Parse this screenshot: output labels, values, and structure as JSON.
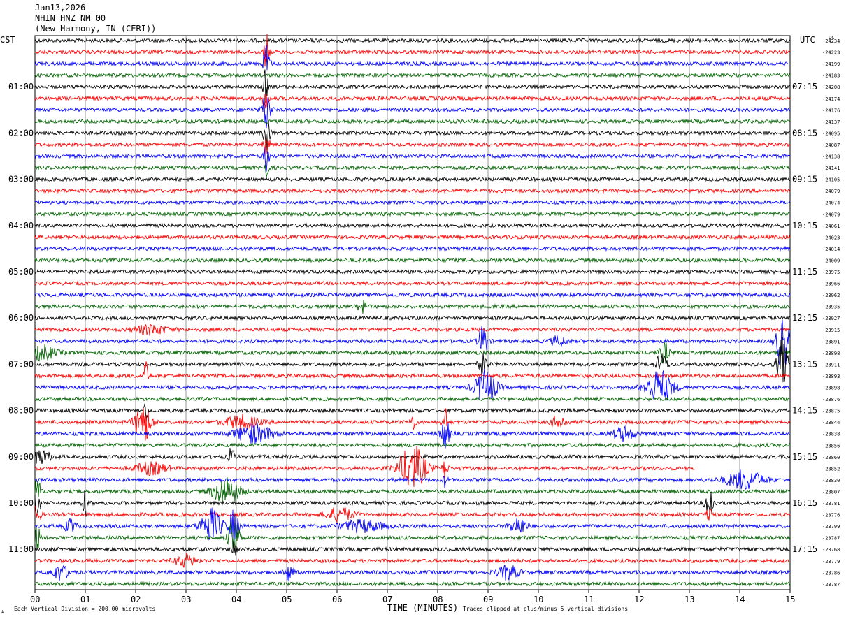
{
  "header": {
    "date": "Jan13,2026",
    "station": "NHIN HNZ NM 00",
    "location": "(New Harmony, IN (CERI))"
  },
  "chart_data": {
    "type": "line",
    "left_axis_label": "CST",
    "right_axis_label": "UTC",
    "dc_label": "DC",
    "xlabel": "TIME (MINUTES)",
    "xlim": [
      0,
      15
    ],
    "x_ticks": [
      "00",
      "01",
      "02",
      "03",
      "04",
      "05",
      "06",
      "07",
      "08",
      "09",
      "10",
      "11",
      "12",
      "13",
      "14",
      "15"
    ],
    "rows_per_hour": 4,
    "trace_count": 48,
    "trace_colors": [
      "#000000",
      "#ff0000",
      "#0000ff",
      "#006400"
    ],
    "left_hour_labels": [
      "01:00",
      "02:00",
      "03:00",
      "04:00",
      "05:00",
      "06:00",
      "07:00",
      "08:00",
      "09:00",
      "10:00",
      "11:00"
    ],
    "right_hour_labels": [
      "07:15",
      "08:15",
      "09:15",
      "10:15",
      "11:15",
      "12:15",
      "13:15",
      "14:15",
      "15:15",
      "16:15",
      "17:15"
    ],
    "dc_offsets": [
      "-24234",
      "-24223",
      "-24199",
      "-24183",
      "-24208",
      "-24174",
      "-24176",
      "-24137",
      "-24095",
      "-24087",
      "-24138",
      "-24141",
      "-24105",
      "-24079",
      "-24074",
      "-24079",
      "-24061",
      "-24023",
      "-24014",
      "-24009",
      "-23975",
      "-23966",
      "-23962",
      "-23935",
      "-23927",
      "-23915",
      "-23891",
      "-23898",
      "-23911",
      "-23893",
      "-23898",
      "-23876",
      "-23875",
      "-23844",
      "-23838",
      "-23856",
      "-23860",
      "-23852",
      "-23830",
      "-23807",
      "-23781",
      "-23776",
      "-23799",
      "-23787",
      "-23768",
      "-23779",
      "-23786",
      "-23787"
    ],
    "events": [
      {
        "row": 1,
        "minute": 4.6,
        "amp": 1.6,
        "width": 0.05
      },
      {
        "row": 2,
        "minute": 4.6,
        "amp": 1.8,
        "width": 0.06
      },
      {
        "row": 4,
        "minute": 4.58,
        "amp": 1.4,
        "width": 0.05
      },
      {
        "row": 5,
        "minute": 4.58,
        "amp": 1.2,
        "width": 0.05
      },
      {
        "row": 6,
        "minute": 4.6,
        "amp": 1.8,
        "width": 0.08
      },
      {
        "row": 8,
        "minute": 4.6,
        "amp": 1.5,
        "width": 0.06
      },
      {
        "row": 9,
        "minute": 4.6,
        "amp": 1.2,
        "width": 0.05
      },
      {
        "row": 10,
        "minute": 4.6,
        "amp": 1.4,
        "width": 0.05
      },
      {
        "row": 11,
        "minute": 4.6,
        "amp": 0.8,
        "width": 0.04
      },
      {
        "row": 23,
        "minute": 6.5,
        "amp": 0.5,
        "width": 0.08
      },
      {
        "row": 25,
        "minute": 2.3,
        "amp": 0.4,
        "width": 0.3
      },
      {
        "row": 26,
        "minute": 8.9,
        "amp": 1.5,
        "width": 0.08
      },
      {
        "row": 26,
        "minute": 10.4,
        "amp": 0.4,
        "width": 0.15
      },
      {
        "row": 26,
        "minute": 14.85,
        "amp": 2.5,
        "width": 0.12
      },
      {
        "row": 27,
        "minute": 0.15,
        "amp": 0.6,
        "width": 0.25
      },
      {
        "row": 27,
        "minute": 12.5,
        "amp": 1.0,
        "width": 0.08
      },
      {
        "row": 28,
        "minute": 14.85,
        "amp": 2.2,
        "width": 0.1
      },
      {
        "row": 28,
        "minute": 8.9,
        "amp": 1.0,
        "width": 0.08
      },
      {
        "row": 28,
        "minute": 12.45,
        "amp": 1.0,
        "width": 0.1
      },
      {
        "row": 29,
        "minute": 2.2,
        "amp": 1.2,
        "width": 0.05
      },
      {
        "row": 30,
        "minute": 8.95,
        "amp": 1.5,
        "width": 0.2
      },
      {
        "row": 30,
        "minute": 12.4,
        "amp": 1.5,
        "width": 0.25
      },
      {
        "row": 32,
        "minute": 2.2,
        "amp": 1.0,
        "width": 0.05
      },
      {
        "row": 33,
        "minute": 2.15,
        "amp": 1.8,
        "width": 0.15
      },
      {
        "row": 33,
        "minute": 4.1,
        "amp": 0.6,
        "width": 0.3
      },
      {
        "row": 33,
        "minute": 7.5,
        "amp": 0.8,
        "width": 0.05
      },
      {
        "row": 33,
        "minute": 8.15,
        "amp": 1.2,
        "width": 0.05
      },
      {
        "row": 33,
        "minute": 10.4,
        "amp": 0.6,
        "width": 0.12
      },
      {
        "row": 34,
        "minute": 4.35,
        "amp": 0.8,
        "width": 0.35
      },
      {
        "row": 34,
        "minute": 8.15,
        "amp": 1.4,
        "width": 0.08
      },
      {
        "row": 34,
        "minute": 11.7,
        "amp": 0.6,
        "width": 0.2
      },
      {
        "row": 36,
        "minute": 0.1,
        "amp": 0.6,
        "width": 0.2
      },
      {
        "row": 36,
        "minute": 3.9,
        "amp": 0.8,
        "width": 0.05
      },
      {
        "row": 37,
        "minute": 7.5,
        "amp": 2.0,
        "width": 0.25
      },
      {
        "row": 37,
        "minute": 2.3,
        "amp": 0.5,
        "width": 0.3
      },
      {
        "row": 37,
        "minute": 8.15,
        "amp": 1.0,
        "width": 0.05
      },
      {
        "row": 38,
        "minute": 14.1,
        "amp": 0.8,
        "width": 0.35
      },
      {
        "row": 38,
        "minute": 8.15,
        "amp": 0.6,
        "width": 0.04
      },
      {
        "row": 39,
        "minute": 3.8,
        "amp": 1.2,
        "width": 0.25
      },
      {
        "row": 39,
        "minute": 0.05,
        "amp": 1.5,
        "width": 0.05
      },
      {
        "row": 40,
        "minute": 0.05,
        "amp": 2.0,
        "width": 0.05
      },
      {
        "row": 40,
        "minute": 1.0,
        "amp": 1.2,
        "width": 0.05
      },
      {
        "row": 40,
        "minute": 13.4,
        "amp": 1.5,
        "width": 0.08
      },
      {
        "row": 41,
        "minute": 6.05,
        "amp": 0.6,
        "width": 0.25
      },
      {
        "row": 41,
        "minute": 13.4,
        "amp": 0.8,
        "width": 0.05
      },
      {
        "row": 41,
        "minute": 0.05,
        "amp": 1.5,
        "width": 0.05
      },
      {
        "row": 42,
        "minute": 3.5,
        "amp": 1.5,
        "width": 0.2
      },
      {
        "row": 42,
        "minute": 3.95,
        "amp": 1.4,
        "width": 0.1
      },
      {
        "row": 42,
        "minute": 6.5,
        "amp": 0.5,
        "width": 0.4
      },
      {
        "row": 42,
        "minute": 9.6,
        "amp": 0.8,
        "width": 0.15
      },
      {
        "row": 42,
        "minute": 0.7,
        "amp": 0.6,
        "width": 0.1
      },
      {
        "row": 43,
        "minute": 3.95,
        "amp": 1.8,
        "width": 0.1
      },
      {
        "row": 43,
        "minute": 0.05,
        "amp": 1.2,
        "width": 0.05
      },
      {
        "row": 44,
        "minute": 3.95,
        "amp": 0.8,
        "width": 0.05
      },
      {
        "row": 45,
        "minute": 3.0,
        "amp": 0.5,
        "width": 0.2
      },
      {
        "row": 46,
        "minute": 0.5,
        "amp": 0.7,
        "width": 0.15
      },
      {
        "row": 46,
        "minute": 5.05,
        "amp": 0.8,
        "width": 0.08
      },
      {
        "row": 46,
        "minute": 9.4,
        "amp": 0.6,
        "width": 0.2
      }
    ],
    "row_end_minutes": {
      "37": 13.1
    }
  },
  "footer": {
    "vertical_division": "Each Vertical Division =  200.00 microvolts",
    "clip_note": "Traces clipped at plus/minus 5 vertical divisions",
    "corner_mark": "A"
  }
}
